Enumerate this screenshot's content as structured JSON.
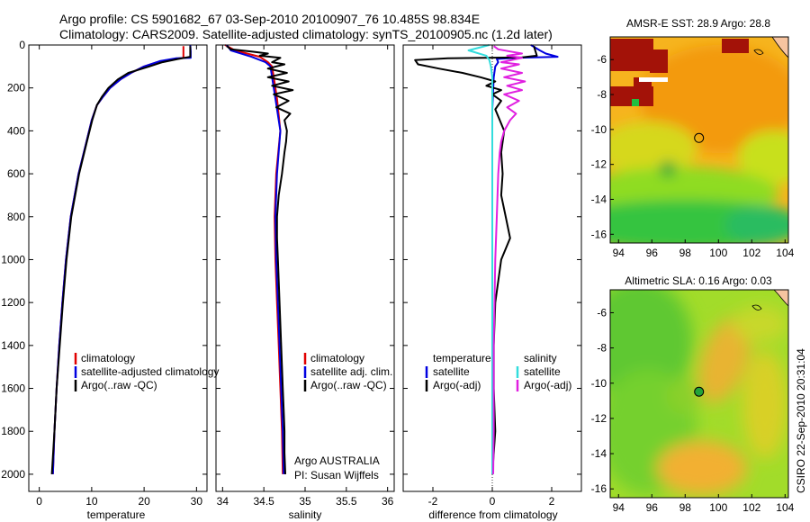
{
  "header": {
    "line1": "Argo profile: CS 5901682_67 03-Sep-2010 20100907_76 10.485S 98.834E",
    "line2": "Climatology: CARS2009. Satellite-adjusted climatology: synTS_20100905.nc (1.2d later)"
  },
  "colors": {
    "climatology": "#e00000",
    "satellite": "#0000e0",
    "argo": "#000000",
    "satellite_salinity": "#33dddd",
    "argo_adj_salinity": "#e020e0"
  },
  "chart_data": [
    {
      "type": "line",
      "xlabel": "temperature",
      "ylabel": "",
      "xlim": [
        -2,
        32
      ],
      "ylim": [
        2080,
        0
      ],
      "xticks": [
        0,
        10,
        20,
        30
      ],
      "yticks": [
        0,
        200,
        400,
        600,
        800,
        1000,
        1200,
        1400,
        1600,
        1800,
        2000
      ],
      "legend": {
        "position": "bottom-right",
        "entries": [
          "climatology",
          "satellite-adjusted climatology",
          "Argo(..raw -QC)"
        ]
      },
      "series": [
        {
          "name": "climatology",
          "color": "#e00000",
          "y": [
            5,
            60,
            66,
            80,
            100,
            130,
            160,
            200,
            240,
            280,
            350,
            450,
            600,
            800,
            1000,
            1200,
            1400,
            1600,
            1800,
            2000
          ],
          "x": [
            27.5,
            27.5,
            25.5,
            22.5,
            20.0,
            17.5,
            15.5,
            13.5,
            12.2,
            11.0,
            10.0,
            9.0,
            7.5,
            6.0,
            5.1,
            4.4,
            3.8,
            3.3,
            2.9,
            2.6
          ]
        },
        {
          "name": "satellite-adjusted climatology",
          "color": "#0000e0",
          "y": [
            0,
            30,
            60,
            62,
            75,
            100,
            130,
            160,
            200,
            240,
            280,
            350,
            450,
            600,
            800,
            1000,
            1200,
            1400,
            1600,
            1800,
            2000
          ],
          "x": [
            28.8,
            28.9,
            28.9,
            26.0,
            23.0,
            20.0,
            17.5,
            15.5,
            13.5,
            12.2,
            11.0,
            10.0,
            9.0,
            7.5,
            6.0,
            5.1,
            4.4,
            3.8,
            3.3,
            2.9,
            2.6
          ]
        },
        {
          "name": "Argo(..raw -QC)",
          "color": "#000000",
          "y": [
            5,
            55,
            65,
            80,
            100,
            130,
            160,
            200,
            240,
            280,
            350,
            450,
            600,
            800,
            1000,
            1200,
            1400,
            1600,
            1800,
            2000
          ],
          "x": [
            28.8,
            28.8,
            26.5,
            23.5,
            21.0,
            17.0,
            15.0,
            13.2,
            12.0,
            11.0,
            10.1,
            9.1,
            7.6,
            6.1,
            5.2,
            4.5,
            3.9,
            3.3,
            2.9,
            2.4
          ]
        }
      ]
    },
    {
      "type": "line",
      "xlabel": "salinity",
      "ylabel": "",
      "xlim": [
        33.92,
        36.08
      ],
      "ylim": [
        2080,
        0
      ],
      "xticks": [
        34,
        34.5,
        35,
        35.5,
        36
      ],
      "legend": {
        "position": "bottom-right",
        "entries": [
          "climatology",
          "satellite adj. clim.",
          "Argo(..raw -QC)"
        ]
      },
      "annotations": [
        "Argo AUSTRALIA",
        "PI: Susan Wijffels"
      ],
      "series": [
        {
          "name": "climatology",
          "color": "#e00000",
          "y": [
            0,
            25,
            55,
            80,
            100,
            150,
            250,
            400,
            600,
            800,
            1000,
            1200,
            1400,
            1600,
            1800,
            2000
          ],
          "x": [
            34.03,
            34.15,
            34.45,
            34.55,
            34.6,
            34.62,
            34.66,
            34.7,
            34.65,
            34.63,
            34.64,
            34.66,
            34.68,
            34.7,
            34.72,
            34.73
          ]
        },
        {
          "name": "satellite adj. clim.",
          "color": "#0000e0",
          "y": [
            0,
            25,
            55,
            80,
            100,
            150,
            250,
            400,
            600,
            800,
            1000,
            1200,
            1400,
            1600,
            1800,
            2000
          ],
          "x": [
            34.05,
            34.1,
            34.35,
            34.52,
            34.58,
            34.6,
            34.64,
            34.7,
            34.66,
            34.64,
            34.65,
            34.67,
            34.69,
            34.71,
            34.73,
            34.74
          ]
        },
        {
          "name": "Argo(..raw -QC)",
          "color": "#000000",
          "y": [
            5,
            20,
            30,
            40,
            50,
            60,
            80,
            90,
            110,
            130,
            150,
            170,
            190,
            210,
            230,
            260,
            290,
            320,
            350,
            400,
            450,
            500,
            600,
            700,
            800,
            900,
            1000,
            1100,
            1200,
            1300,
            1400,
            1500,
            1600,
            1700,
            1800,
            1900,
            2000
          ],
          "x": [
            34.05,
            34.1,
            34.35,
            34.55,
            34.45,
            34.7,
            34.6,
            34.75,
            34.55,
            34.78,
            34.55,
            34.8,
            34.6,
            34.85,
            34.62,
            34.8,
            34.65,
            34.82,
            34.75,
            34.78,
            34.77,
            34.75,
            34.72,
            34.68,
            34.66,
            34.66,
            34.67,
            34.68,
            34.69,
            34.7,
            34.71,
            34.72,
            34.73,
            34.74,
            34.75,
            34.75,
            34.76
          ]
        }
      ]
    },
    {
      "type": "line",
      "xlabel": "difference from climatology",
      "ylabel": "",
      "xlim": [
        -3,
        3
      ],
      "ylim": [
        2080,
        0
      ],
      "xticks": [
        -2,
        0,
        2
      ],
      "legend": {
        "position": "bottom",
        "groups": [
          {
            "heading": "temperature",
            "entries": [
              "satellite",
              "Argo(-adj)"
            ]
          },
          {
            "heading": "salinity",
            "entries": [
              "satellite",
              "Argo(-adj)"
            ]
          }
        ]
      },
      "series": [
        {
          "name": "satellite",
          "group": "temperature",
          "color": "#0000e0",
          "y": [
            0,
            25,
            40,
            55,
            60,
            65,
            80,
            100,
            150,
            300,
            2000
          ],
          "x": [
            1.3,
            1.6,
            1.8,
            2.2,
            0.8,
            0.15,
            0.2,
            0.1,
            0.05,
            0.0,
            0.0
          ]
        },
        {
          "name": "Argo(-adj)",
          "group": "temperature",
          "color": "#000000",
          "y": [
            5,
            50,
            58,
            62,
            70,
            90,
            110,
            130,
            150,
            170,
            190,
            210,
            230,
            260,
            300,
            350,
            400,
            500,
            600,
            700,
            800,
            900,
            1000,
            1200,
            1400,
            1600,
            1800,
            2000
          ],
          "x": [
            1.4,
            1.5,
            1.0,
            -1.5,
            -2.6,
            -2.5,
            -1.8,
            -1.0,
            -0.4,
            0.1,
            -0.2,
            0.3,
            0.0,
            0.3,
            0.1,
            0.25,
            0.4,
            0.3,
            0.35,
            0.3,
            0.45,
            0.6,
            0.3,
            0.1,
            0.05,
            0.05,
            0.1,
            0.0
          ]
        },
        {
          "name": "satellite",
          "group": "salinity",
          "color": "#33dddd",
          "y": [
            0,
            25,
            50,
            70,
            100,
            150,
            200,
            300,
            400,
            500,
            700,
            1000,
            1400,
            1800,
            2000
          ],
          "x": [
            -0.1,
            -0.8,
            -0.2,
            -0.1,
            -0.05,
            0.0,
            0.0,
            0.0,
            0.0,
            0.0,
            0.0,
            0.0,
            0.0,
            0.0,
            0.0
          ]
        },
        {
          "name": "Argo(-adj)",
          "group": "salinity",
          "color": "#e020e0",
          "y": [
            5,
            20,
            30,
            40,
            50,
            60,
            80,
            90,
            110,
            130,
            150,
            170,
            190,
            210,
            230,
            260,
            290,
            320,
            350,
            400,
            450,
            500,
            600,
            800,
            1000,
            1400,
            1800,
            2000
          ],
          "x": [
            0.05,
            0.2,
            0.6,
            1.0,
            0.5,
            1.0,
            0.3,
            0.9,
            0.3,
            1.0,
            0.4,
            1.1,
            0.5,
            1.0,
            0.4,
            0.9,
            0.5,
            0.8,
            0.6,
            0.4,
            0.3,
            0.25,
            0.2,
            0.15,
            0.1,
            0.05,
            0.05,
            0.03
          ]
        }
      ]
    },
    {
      "type": "heatmap",
      "title": "AMSR-E SST: 28.9 Argo: 28.8",
      "xlim": [
        93.5,
        104.2
      ],
      "ylim": [
        -16.5,
        -4.7
      ],
      "xticks": [
        94,
        96,
        98,
        100,
        102,
        104
      ],
      "yticks": [
        -6,
        -8,
        -10,
        -12,
        -14,
        -16
      ],
      "marker": {
        "lon": 98.834,
        "lat": -10.485,
        "filled": false
      }
    },
    {
      "type": "heatmap",
      "title": "Altimetric SLA: 0.16 Argo: 0.03",
      "xlim": [
        93.5,
        104.2
      ],
      "ylim": [
        -16.5,
        -4.7
      ],
      "xticks": [
        94,
        96,
        98,
        100,
        102,
        104
      ],
      "yticks": [
        -6,
        -8,
        -10,
        -12,
        -14,
        -16
      ],
      "marker": {
        "lon": 98.834,
        "lat": -10.485,
        "filled": true
      }
    }
  ],
  "credit": "CSIRO 22-Sep-2010 20:31:04"
}
